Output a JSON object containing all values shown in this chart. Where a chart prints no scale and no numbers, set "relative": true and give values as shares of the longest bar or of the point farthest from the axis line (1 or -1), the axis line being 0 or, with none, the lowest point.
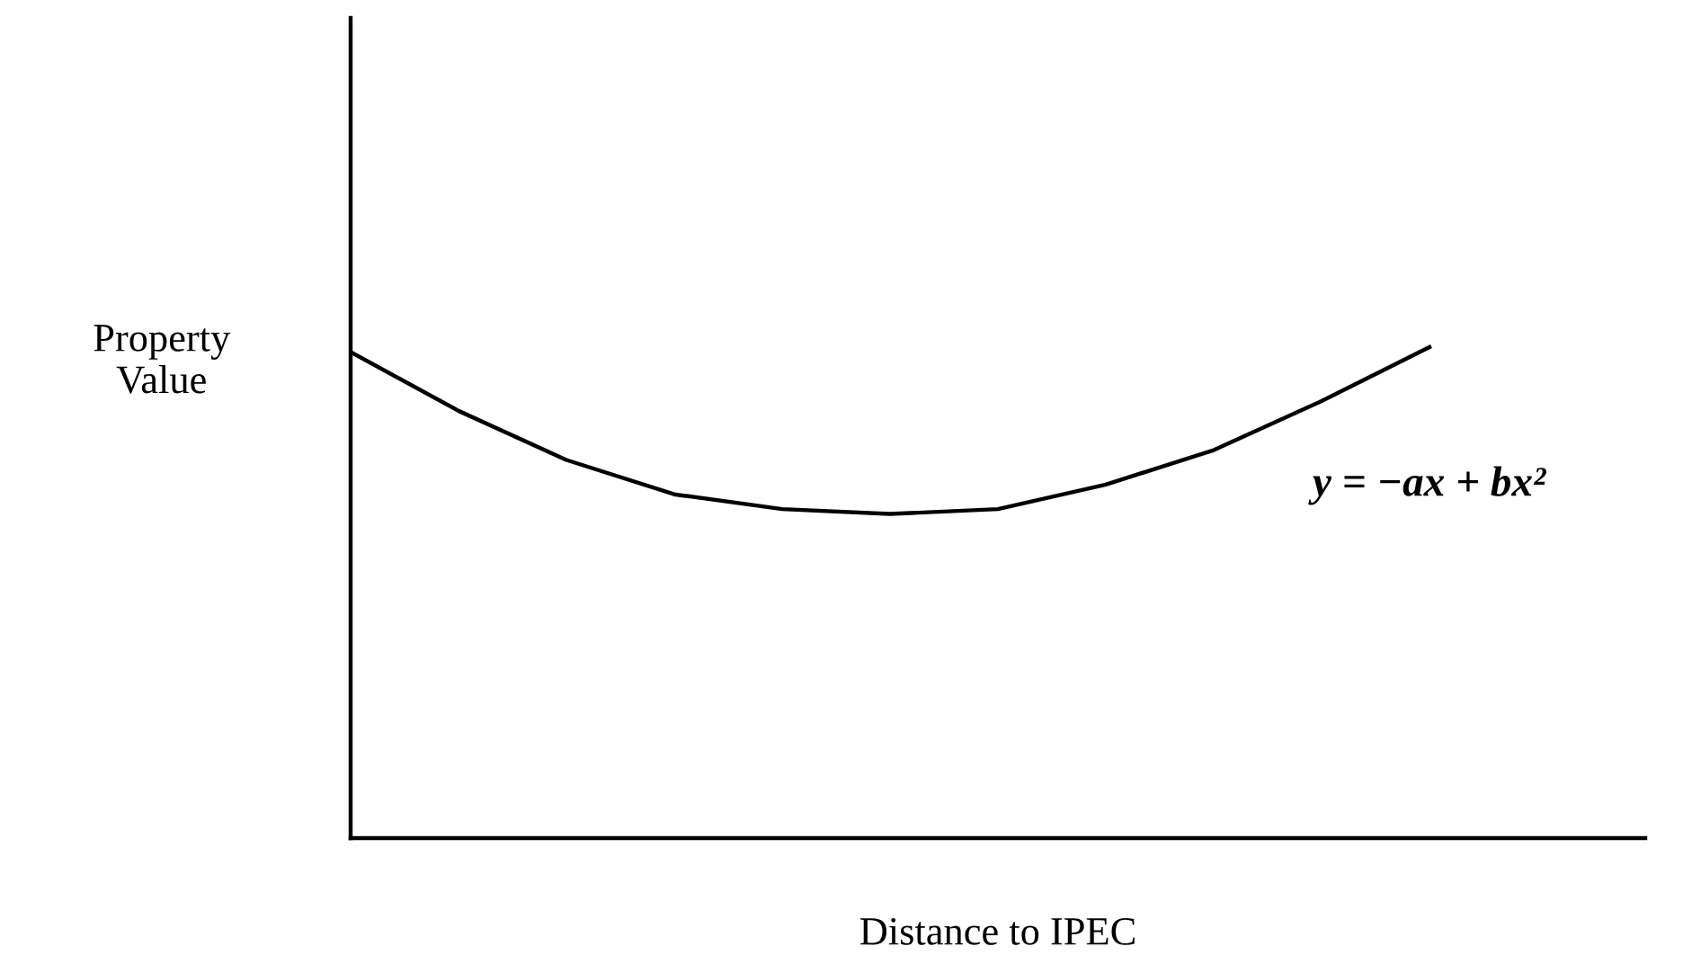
{
  "chart_data": {
    "type": "line",
    "relative": true,
    "xlabel": "Distance to IPEC",
    "ylabel": "Property\nValue",
    "categories": [
      null,
      null,
      null,
      null,
      null,
      null,
      null,
      null,
      null,
      null,
      null,
      null,
      null
    ],
    "series": [
      {
        "color": "#000000",
        "values": [
          0.99,
          0.87,
          0.77,
          0.7,
          0.67,
          0.66,
          0.67,
          0.72,
          0.79,
          0.89,
          1.0,
          null,
          null
        ]
      }
    ],
    "annotations": [
      "y = −ax + bx²"
    ],
    "grid": false,
    "legend": false,
    "marker": "none",
    "line_style": "solid"
  }
}
